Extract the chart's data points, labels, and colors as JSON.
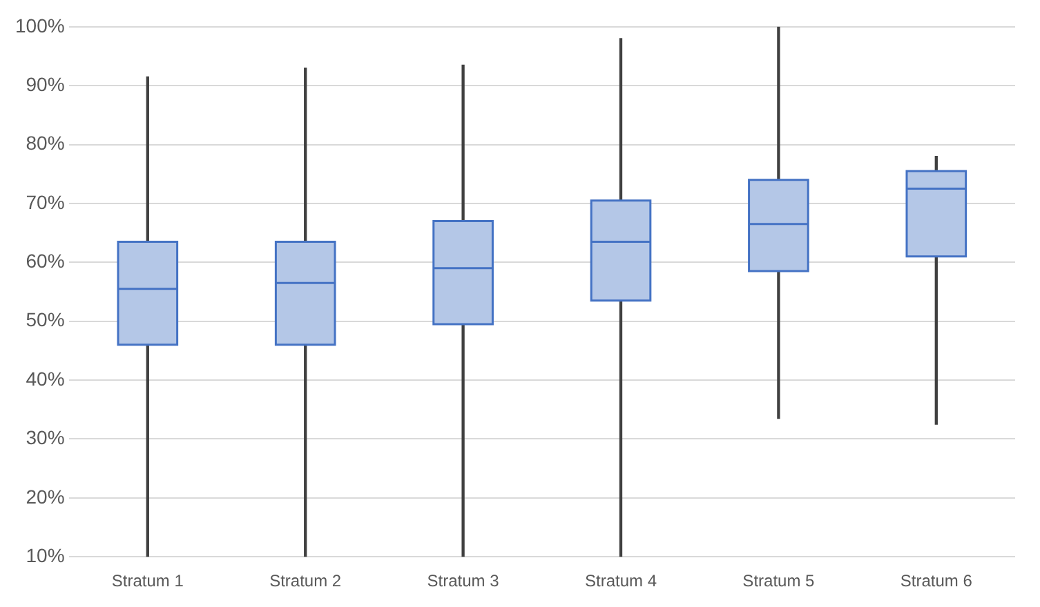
{
  "chart_data": {
    "type": "box",
    "categories": [
      "Stratum 1",
      "Stratum 2",
      "Stratum 3",
      "Stratum 4",
      "Stratum 5",
      "Stratum 6"
    ],
    "boxes": [
      {
        "low": 10,
        "q1": 46,
        "median": 55.5,
        "q3": 63.5,
        "high": 91.5
      },
      {
        "low": 10,
        "q1": 46,
        "median": 56.5,
        "q3": 63.5,
        "high": 93
      },
      {
        "low": 10,
        "q1": 49.5,
        "median": 59,
        "q3": 67,
        "high": 93.5
      },
      {
        "low": 10,
        "q1": 53.5,
        "median": 63.5,
        "q3": 70.5,
        "high": 98
      },
      {
        "low": 33.5,
        "q1": 58.5,
        "median": 66.5,
        "q3": 74,
        "high": 100
      },
      {
        "low": 32.5,
        "q1": 61,
        "median": 72.5,
        "q3": 75.5,
        "high": 78
      }
    ],
    "color": "#b4c7e7",
    "ylim": [
      10,
      100
    ],
    "yticks": [
      {
        "value": 10,
        "label": "10%"
      },
      {
        "value": 20,
        "label": "20%"
      },
      {
        "value": 30,
        "label": "30%"
      },
      {
        "value": 40,
        "label": "40%"
      },
      {
        "value": 50,
        "label": "50%"
      },
      {
        "value": 60,
        "label": "60%"
      },
      {
        "value": 70,
        "label": "70%"
      },
      {
        "value": 80,
        "label": "80%"
      },
      {
        "value": 90,
        "label": "90%"
      },
      {
        "value": 100,
        "label": "100%"
      }
    ],
    "grid": "y"
  }
}
